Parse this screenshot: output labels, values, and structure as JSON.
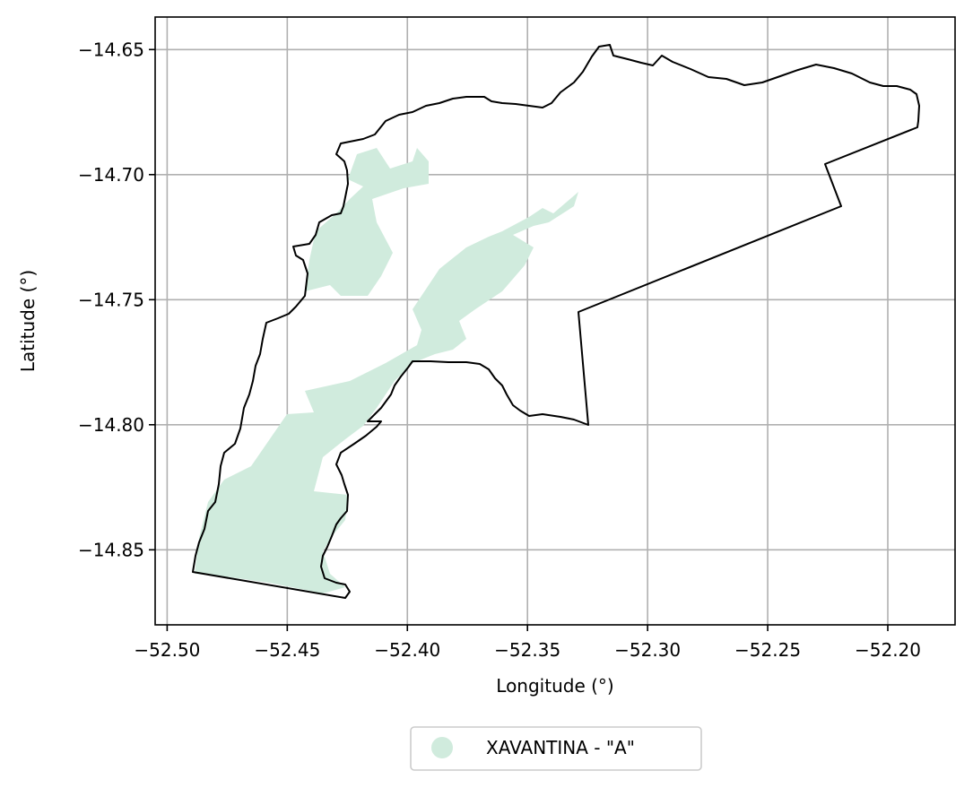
{
  "chart_data": {
    "type": "map",
    "xlabel": "Longitude (°)",
    "ylabel": "Latitude (°)",
    "xlim": [
      -52.505,
      -52.172
    ],
    "ylim": [
      -14.88,
      -14.637
    ],
    "x_ticks": [
      -52.5,
      -52.45,
      -52.4,
      -52.35,
      -52.3,
      -52.25,
      -52.2
    ],
    "x_tick_labels": [
      "−52.50",
      "−52.45",
      "−52.40",
      "−52.35",
      "−52.30",
      "−52.25",
      "−52.20"
    ],
    "y_ticks": [
      -14.65,
      -14.7,
      -14.75,
      -14.8,
      -14.85
    ],
    "y_tick_labels": [
      "−14.65",
      "−14.70",
      "−14.75",
      "−14.80",
      "−14.85"
    ],
    "grid": true,
    "legend": {
      "placement": "bottom-center",
      "entries": [
        {
          "label": "XAVANTINA -  \"A\"",
          "color": "#d0ebdd",
          "marker": "circle"
        }
      ]
    },
    "boundary": {
      "color": "#000000",
      "coords": [
        [
          -52.488,
          -14.858
        ],
        [
          -52.484,
          -14.849
        ],
        [
          -52.481,
          -14.842
        ],
        [
          -52.478,
          -14.834
        ],
        [
          -52.473,
          -14.827
        ],
        [
          -52.469,
          -14.821
        ],
        [
          -52.468,
          -14.813
        ],
        [
          -52.464,
          -14.807
        ],
        [
          -52.462,
          -14.8
        ],
        [
          -52.46,
          -14.791
        ],
        [
          -52.457,
          -14.783
        ],
        [
          -52.453,
          -14.776
        ],
        [
          -52.452,
          -14.768
        ],
        [
          -52.449,
          -14.76
        ],
        [
          -52.445,
          -14.754
        ],
        [
          -52.441,
          -14.748
        ],
        [
          -52.439,
          -14.741
        ],
        [
          -52.438,
          -14.732
        ],
        [
          -52.434,
          -14.729
        ],
        [
          -52.429,
          -14.728
        ],
        [
          -52.426,
          -14.722
        ],
        [
          -52.42,
          -14.716
        ],
        [
          -52.418,
          -14.709
        ],
        [
          -52.417,
          -14.7
        ],
        [
          -52.418,
          -14.692
        ],
        [
          -52.421,
          -14.688
        ],
        [
          -52.416,
          -14.686
        ],
        [
          -52.41,
          -14.685
        ],
        [
          -52.405,
          -14.683
        ],
        [
          -52.401,
          -14.68
        ],
        [
          -52.397,
          -14.678
        ],
        [
          -52.392,
          -14.677
        ],
        [
          -52.386,
          -14.673
        ],
        [
          -52.38,
          -14.669
        ],
        [
          -52.373,
          -14.668
        ],
        [
          -52.365,
          -14.668
        ],
        [
          -52.358,
          -14.671
        ],
        [
          -52.352,
          -14.67
        ],
        [
          -52.347,
          -14.673
        ],
        [
          -52.34,
          -14.672
        ],
        [
          -52.334,
          -14.665
        ],
        [
          -52.327,
          -14.658
        ],
        [
          -52.323,
          -14.653
        ],
        [
          -52.32,
          -14.65
        ],
        [
          -52.316,
          -14.648
        ],
        [
          -52.314,
          -14.653
        ],
        [
          -52.31,
          -14.654
        ],
        [
          -52.304,
          -14.655
        ],
        [
          -52.299,
          -14.658
        ],
        [
          -52.296,
          -14.655
        ],
        [
          -52.291,
          -14.656
        ],
        [
          -52.287,
          -14.659
        ],
        [
          -52.282,
          -14.661
        ],
        [
          -52.275,
          -14.662
        ],
        [
          -52.268,
          -14.664
        ],
        [
          -52.26,
          -14.664
        ],
        [
          -52.252,
          -14.662
        ],
        [
          -52.244,
          -14.661
        ],
        [
          -52.235,
          -14.658
        ],
        [
          -52.226,
          -14.657
        ],
        [
          -52.217,
          -14.66
        ],
        [
          -52.208,
          -14.664
        ],
        [
          -52.2,
          -14.665
        ],
        [
          -52.193,
          -14.668
        ],
        [
          -52.188,
          -14.673
        ],
        [
          -52.189,
          -14.68
        ],
        [
          -52.228,
          -14.695
        ],
        [
          -52.221,
          -14.713
        ],
        [
          -52.329,
          -14.755
        ],
        [
          -52.325,
          -14.8
        ],
        [
          -52.333,
          -14.797
        ],
        [
          -52.345,
          -14.798
        ],
        [
          -52.356,
          -14.792
        ],
        [
          -52.362,
          -14.785
        ],
        [
          -52.368,
          -14.777
        ],
        [
          -52.38,
          -14.775
        ],
        [
          -52.394,
          -14.775
        ],
        [
          -52.4,
          -14.78
        ],
        [
          -52.405,
          -14.787
        ],
        [
          -52.408,
          -14.796
        ],
        [
          -52.412,
          -14.801
        ],
        [
          -52.418,
          -14.81
        ],
        [
          -52.424,
          -14.818
        ],
        [
          -52.425,
          -14.826
        ],
        [
          -52.425,
          -14.834
        ],
        [
          -52.428,
          -14.841
        ],
        [
          -52.43,
          -14.849
        ],
        [
          -52.426,
          -14.857
        ],
        [
          -52.424,
          -14.864
        ],
        [
          -52.426,
          -14.869
        ],
        [
          -52.488,
          -14.858
        ]
      ]
    },
    "zone": {
      "name": "XAVANTINA -  \"A\"",
      "color": "#d0ebdd",
      "coords": [
        [
          -52.484,
          -14.847
        ],
        [
          -52.481,
          -14.84
        ],
        [
          -52.477,
          -14.832
        ],
        [
          -52.471,
          -14.825
        ],
        [
          -52.457,
          -14.817
        ],
        [
          -52.45,
          -14.807
        ],
        [
          -52.443,
          -14.798
        ],
        [
          -52.446,
          -14.792
        ],
        [
          -52.44,
          -14.786
        ],
        [
          -52.428,
          -14.783
        ],
        [
          -52.418,
          -14.779
        ],
        [
          -52.409,
          -14.771
        ],
        [
          -52.402,
          -14.764
        ],
        [
          -52.39,
          -14.755
        ],
        [
          -52.384,
          -14.745
        ],
        [
          -52.377,
          -14.737
        ],
        [
          -52.371,
          -14.731
        ],
        [
          -52.365,
          -14.727
        ],
        [
          -52.358,
          -14.722
        ],
        [
          -52.35,
          -14.715
        ],
        [
          -52.343,
          -14.709
        ],
        [
          -52.342,
          -14.715
        ],
        [
          -52.351,
          -14.724
        ],
        [
          -52.358,
          -14.73
        ],
        [
          -52.364,
          -14.738
        ],
        [
          -52.371,
          -14.747
        ],
        [
          -52.38,
          -14.755
        ],
        [
          -52.386,
          -14.762
        ],
        [
          -52.393,
          -14.767
        ],
        [
          -52.402,
          -14.771
        ],
        [
          -52.405,
          -14.779
        ],
        [
          -52.409,
          -14.787
        ],
        [
          -52.412,
          -14.797
        ],
        [
          -52.416,
          -14.806
        ],
        [
          -52.421,
          -14.815
        ],
        [
          -52.425,
          -14.824
        ],
        [
          -52.427,
          -14.833
        ],
        [
          -52.429,
          -14.841
        ],
        [
          -52.428,
          -14.85
        ],
        [
          -52.427,
          -14.858
        ],
        [
          -52.428,
          -14.866
        ],
        [
          -52.45,
          -14.864
        ],
        [
          -52.47,
          -14.861
        ],
        [
          -52.487,
          -14.857
        ]
      ]
    }
  }
}
